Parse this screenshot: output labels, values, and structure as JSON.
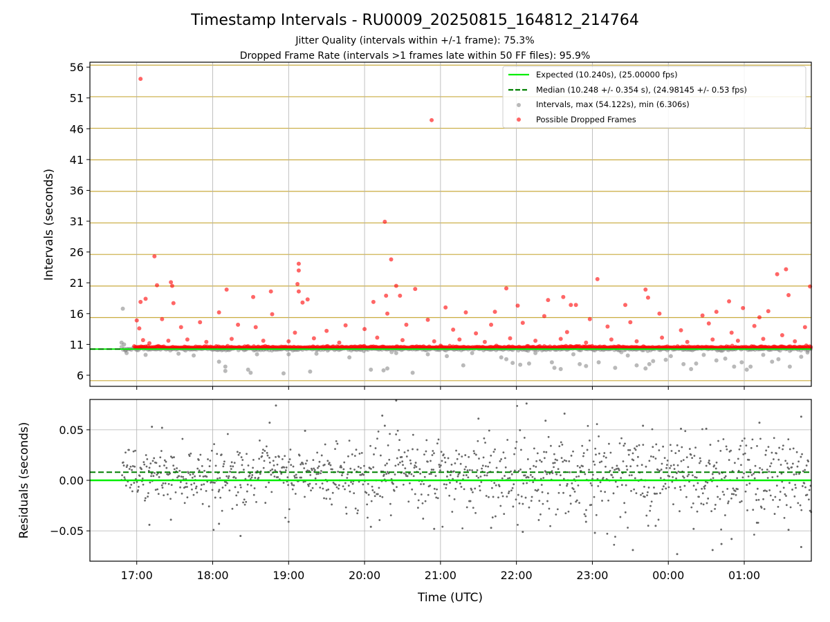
{
  "figure": {
    "title": "Timestamp Intervals - RU0009_20250815_164812_214764",
    "subtitle_1": "Jitter Quality (intervals within +/-1 frame): 75.3%",
    "subtitle_2": "Dropped Frame Rate (intervals >1 frames late within 50 FF files): 95.9%"
  },
  "colors": {
    "expected": "#00ee00",
    "median": "#007f00",
    "intervals": "#808080",
    "dropped": "#ff0000",
    "frame_lines": "#c8aa3c",
    "grid": "#b0b0b0",
    "residual_points": "#666666"
  },
  "chart_data": [
    {
      "type": "scatter",
      "title": "",
      "xlabel": "",
      "ylabel": "Intervals (seconds)",
      "xlim": [
        "16:23",
        "01:53"
      ],
      "ylim": [
        4.2,
        56.8
      ],
      "x_ticks": [
        "17:00",
        "18:00",
        "19:00",
        "20:00",
        "21:00",
        "22:00",
        "23:00",
        "00:00",
        "01:00"
      ],
      "y_ticks": [
        "6",
        "11",
        "16",
        "21",
        "26",
        "31",
        "36",
        "41",
        "46",
        "51",
        "56"
      ],
      "frame_lines_every_s": 5.12,
      "grid": true,
      "legend_position": "top-right",
      "legend": [
        {
          "label": "Expected (10.240s), (25.00000 fps)",
          "kind": "solid-line"
        },
        {
          "label": "Median (10.248 +/- 0.354 s), (24.98145 +/- 0.53 fps)",
          "kind": "dashed-line"
        },
        {
          "label": "Intervals, max (54.122s), min (6.306s)",
          "kind": "gray-dot"
        },
        {
          "label": "Possible Dropped Frames",
          "kind": "red-dot"
        }
      ],
      "expected_interval": 10.24,
      "median_interval": 10.248,
      "median_line_span": [
        "16:23",
        "16:48"
      ],
      "series": [
        {
          "name": "Intervals, max (54.122s), min (6.306s)",
          "baseline": 10.24,
          "points": [
            [
              "16:48",
              11.3
            ],
            [
              "16:49",
              16.8
            ],
            [
              "16:50",
              11.0
            ],
            [
              "16:51",
              10.0
            ],
            [
              "16:52",
              9.6
            ],
            [
              "17:07",
              9.3
            ],
            [
              "17:33",
              9.5
            ],
            [
              "17:45",
              9.2
            ],
            [
              "18:05",
              8.2
            ],
            [
              "18:10",
              7.4
            ],
            [
              "18:10",
              6.7
            ],
            [
              "18:28",
              6.9
            ],
            [
              "18:30",
              6.4
            ],
            [
              "18:35",
              9.4
            ],
            [
              "18:56",
              6.3
            ],
            [
              "19:00",
              9.4
            ],
            [
              "19:17",
              6.6
            ],
            [
              "19:22",
              9.5
            ],
            [
              "19:48",
              8.9
            ],
            [
              "20:05",
              6.9
            ],
            [
              "20:15",
              6.8
            ],
            [
              "20:18",
              7.1
            ],
            [
              "20:25",
              9.6
            ],
            [
              "20:38",
              6.4
            ],
            [
              "20:50",
              9.4
            ],
            [
              "21:05",
              9.1
            ],
            [
              "21:18",
              7.6
            ],
            [
              "21:25",
              9.6
            ],
            [
              "21:48",
              8.9
            ],
            [
              "21:52",
              8.6
            ],
            [
              "21:57",
              8.0
            ],
            [
              "22:03",
              7.7
            ],
            [
              "22:10",
              7.9
            ],
            [
              "22:15",
              9.6
            ],
            [
              "22:28",
              8.1
            ],
            [
              "22:30",
              7.2
            ],
            [
              "22:35",
              7.0
            ],
            [
              "22:45",
              9.4
            ],
            [
              "22:50",
              7.8
            ],
            [
              "22:55",
              7.5
            ],
            [
              "23:05",
              8.1
            ],
            [
              "23:18",
              7.2
            ],
            [
              "23:28",
              9.2
            ],
            [
              "23:35",
              7.6
            ],
            [
              "23:42",
              7.1
            ],
            [
              "23:45",
              7.8
            ],
            [
              "23:48",
              8.3
            ],
            [
              "23:58",
              8.5
            ],
            [
              "00:02",
              9.1
            ],
            [
              "00:12",
              7.8
            ],
            [
              "00:18",
              7.0
            ],
            [
              "00:22",
              7.9
            ],
            [
              "00:28",
              9.3
            ],
            [
              "00:38",
              8.4
            ],
            [
              "00:45",
              8.7
            ],
            [
              "00:52",
              7.4
            ],
            [
              "00:58",
              8.1
            ],
            [
              "01:02",
              6.9
            ],
            [
              "01:05",
              7.4
            ],
            [
              "01:15",
              9.3
            ],
            [
              "01:22",
              8.2
            ],
            [
              "01:27",
              8.6
            ],
            [
              "01:36",
              7.4
            ],
            [
              "01:45",
              9.0
            ],
            [
              "01:50",
              9.7
            ]
          ]
        },
        {
          "name": "Possible Dropped Frames",
          "points": [
            [
              "17:03",
              54.1
            ],
            [
              "20:53",
              47.4
            ],
            [
              "20:16",
              30.9
            ],
            [
              "20:21",
              24.8
            ],
            [
              "17:14",
              25.3
            ],
            [
              "19:08",
              24.1
            ],
            [
              "19:08",
              23.0
            ],
            [
              "17:27",
              21.1
            ],
            [
              "17:28",
              20.5
            ],
            [
              "17:16",
              20.6
            ],
            [
              "19:07",
              20.8
            ],
            [
              "19:08",
              19.6
            ],
            [
              "18:11",
              19.9
            ],
            [
              "18:32",
              18.7
            ],
            [
              "18:46",
              19.6
            ],
            [
              "20:25",
              20.5
            ],
            [
              "20:40",
              20.0
            ],
            [
              "20:17",
              18.9
            ],
            [
              "20:28",
              18.9
            ],
            [
              "21:52",
              20.1
            ],
            [
              "22:37",
              18.7
            ],
            [
              "22:25",
              18.2
            ],
            [
              "23:04",
              21.6
            ],
            [
              "23:42",
              19.9
            ],
            [
              "23:44",
              18.6
            ],
            [
              "01:33",
              23.2
            ],
            [
              "01:26",
              22.4
            ],
            [
              "01:52",
              20.4
            ],
            [
              "01:35",
              19.0
            ],
            [
              "17:03",
              17.9
            ],
            [
              "17:07",
              18.4
            ],
            [
              "17:29",
              17.7
            ],
            [
              "19:15",
              18.3
            ],
            [
              "19:11",
              17.8
            ],
            [
              "20:07",
              17.9
            ],
            [
              "21:04",
              17.0
            ],
            [
              "21:20",
              16.2
            ],
            [
              "21:43",
              16.3
            ],
            [
              "22:01",
              17.3
            ],
            [
              "22:43",
              17.4
            ],
            [
              "22:47",
              17.4
            ],
            [
              "23:26",
              17.4
            ],
            [
              "00:48",
              18.0
            ],
            [
              "00:27",
              15.7
            ],
            [
              "00:38",
              16.3
            ],
            [
              "00:59",
              16.9
            ],
            [
              "01:12",
              15.4
            ],
            [
              "01:19",
              16.4
            ],
            [
              "17:00",
              14.9
            ],
            [
              "17:02",
              13.6
            ],
            [
              "17:20",
              15.1
            ],
            [
              "17:35",
              13.8
            ],
            [
              "17:50",
              14.6
            ],
            [
              "18:05",
              16.2
            ],
            [
              "18:20",
              14.2
            ],
            [
              "18:34",
              13.8
            ],
            [
              "18:47",
              15.9
            ],
            [
              "19:05",
              12.9
            ],
            [
              "19:30",
              13.2
            ],
            [
              "19:45",
              14.1
            ],
            [
              "20:00",
              13.5
            ],
            [
              "20:18",
              16.0
            ],
            [
              "20:33",
              14.2
            ],
            [
              "20:50",
              15.0
            ],
            [
              "21:10",
              13.4
            ],
            [
              "21:28",
              12.8
            ],
            [
              "21:40",
              14.2
            ],
            [
              "22:05",
              14.5
            ],
            [
              "22:22",
              15.6
            ],
            [
              "22:40",
              13.0
            ],
            [
              "22:58",
              15.1
            ],
            [
              "23:12",
              13.9
            ],
            [
              "23:30",
              14.6
            ],
            [
              "23:53",
              16.0
            ],
            [
              "00:10",
              13.3
            ],
            [
              "00:32",
              14.4
            ],
            [
              "00:50",
              12.9
            ],
            [
              "01:08",
              14.0
            ],
            [
              "01:30",
              12.5
            ],
            [
              "01:48",
              13.8
            ],
            [
              "17:05",
              11.7
            ],
            [
              "17:10",
              11.2
            ],
            [
              "17:25",
              11.6
            ],
            [
              "17:40",
              11.8
            ],
            [
              "17:55",
              11.4
            ],
            [
              "18:15",
              11.9
            ],
            [
              "18:40",
              11.6
            ],
            [
              "19:00",
              11.5
            ],
            [
              "19:20",
              12.0
            ],
            [
              "19:40",
              11.3
            ],
            [
              "20:10",
              12.1
            ],
            [
              "20:30",
              11.7
            ],
            [
              "20:55",
              11.5
            ],
            [
              "21:15",
              11.8
            ],
            [
              "21:35",
              11.4
            ],
            [
              "21:55",
              12.0
            ],
            [
              "22:15",
              11.6
            ],
            [
              "22:35",
              11.9
            ],
            [
              "22:55",
              11.3
            ],
            [
              "23:15",
              11.8
            ],
            [
              "23:35",
              11.5
            ],
            [
              "23:55",
              12.1
            ],
            [
              "00:15",
              11.4
            ],
            [
              "00:35",
              11.8
            ],
            [
              "00:55",
              11.6
            ],
            [
              "01:15",
              11.9
            ],
            [
              "01:40",
              11.5
            ]
          ]
        }
      ]
    },
    {
      "type": "scatter",
      "title": "",
      "xlabel": "Time (UTC)",
      "ylabel": "Residuals (seconds)",
      "xlim": [
        "16:23",
        "01:53"
      ],
      "ylim": [
        -0.08,
        0.08
      ],
      "x_ticks": [
        "17:00",
        "18:00",
        "19:00",
        "20:00",
        "21:00",
        "22:00",
        "23:00",
        "00:00",
        "01:00"
      ],
      "y_ticks": [
        "−0.05",
        "0.00",
        "0.05"
      ],
      "y_tick_values": [
        -0.05,
        0.0,
        0.05
      ],
      "grid": true,
      "expected_residual": 0.0,
      "median_residual": 0.008,
      "series": [
        {
          "name": "",
          "mean": 0.005,
          "spread_segments": [
            [
              "16:48",
              "17:40",
              0.012
            ],
            [
              "17:40",
              "19:30",
              0.014
            ],
            [
              "19:30",
              "20:40",
              0.018
            ],
            [
              "20:40",
              "22:20",
              0.02
            ],
            [
              "22:20",
              "01:53",
              0.022
            ]
          ],
          "outliers": [
            [
              "18:50",
              0.074
            ],
            [
              "20:25",
              0.079
            ],
            [
              "22:08",
              0.076
            ],
            [
              "20:14",
              0.064
            ],
            [
              "17:12",
              0.053
            ],
            [
              "17:20",
              0.052
            ],
            [
              "18:45",
              0.057
            ],
            [
              "19:13",
              0.049
            ],
            [
              "20:16",
              0.054
            ],
            [
              "21:30",
              0.061
            ],
            [
              "22:23",
              0.059
            ],
            [
              "22:38",
              0.066
            ],
            [
              "23:40",
              0.054
            ],
            [
              "00:10",
              0.051
            ],
            [
              "00:30",
              0.051
            ],
            [
              "01:12",
              0.057
            ],
            [
              "01:45",
              0.063
            ],
            [
              "18:22",
              -0.055
            ],
            [
              "23:02",
              -0.052
            ],
            [
              "23:32",
              -0.069
            ],
            [
              "00:07",
              -0.073
            ],
            [
              "00:35",
              -0.069
            ],
            [
              "00:42",
              -0.063
            ],
            [
              "01:45",
              -0.066
            ],
            [
              "00:50",
              -0.058
            ],
            [
              "17:10",
              -0.044
            ],
            [
              "17:27",
              -0.039
            ],
            [
              "18:05",
              -0.043
            ],
            [
              "19:00",
              -0.041
            ],
            [
              "20:05",
              -0.046
            ],
            [
              "20:55",
              -0.048
            ],
            [
              "21:40",
              -0.047
            ],
            [
              "22:05",
              -0.051
            ],
            [
              "22:55",
              -0.041
            ],
            [
              "23:50",
              -0.045
            ],
            [
              "00:20",
              -0.048
            ],
            [
              "01:10",
              -0.042
            ],
            [
              "01:35",
              -0.049
            ]
          ]
        }
      ]
    }
  ]
}
